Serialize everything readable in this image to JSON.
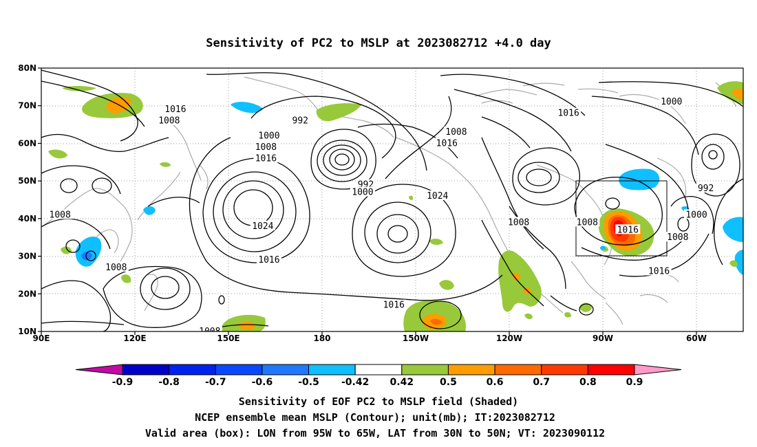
{
  "title": "Sensitivity of PC2 to MSLP at 2023082712 +4.0 day",
  "map": {
    "lon_ticks": [
      "90E",
      "120E",
      "150E",
      "180",
      "150W",
      "120W",
      "90W",
      "60W"
    ],
    "lat_ticks": [
      "80N",
      "70N",
      "60N",
      "50N",
      "40N",
      "30N",
      "20N",
      "10N"
    ],
    "lon_range": [
      "90E",
      "45W"
    ],
    "lat_range": [
      "10N",
      "80N"
    ],
    "grid": "dotted",
    "valid_box": {
      "lon_from": "95W",
      "lon_to": "65W",
      "lat_from": "30N",
      "lat_to": "50N"
    },
    "contour_labels": [
      {
        "text": "1016",
        "lon": "133E",
        "lat": "69N"
      },
      {
        "text": "1008",
        "lon": "131E",
        "lat": "66N"
      },
      {
        "text": "992",
        "lon": "187W",
        "lat": "66N"
      },
      {
        "text": "1000",
        "lon": "163E",
        "lat": "62N"
      },
      {
        "text": "1008",
        "lon": "162E",
        "lat": "59N"
      },
      {
        "text": "1016",
        "lon": "162E",
        "lat": "56N"
      },
      {
        "text": "992",
        "lon": "166W",
        "lat": "49N"
      },
      {
        "text": "1000",
        "lon": "167W",
        "lat": "47N"
      },
      {
        "text": "1008",
        "lon": "137W",
        "lat": "63N"
      },
      {
        "text": "1016",
        "lon": "140W",
        "lat": "60N"
      },
      {
        "text": "1024",
        "lon": "143W",
        "lat": "46N"
      },
      {
        "text": "1024",
        "lon": "161E",
        "lat": "38N"
      },
      {
        "text": "1016",
        "lon": "163E",
        "lat": "29N"
      },
      {
        "text": "1008",
        "lon": "96E",
        "lat": "41N"
      },
      {
        "text": "1008",
        "lon": "114E",
        "lat": "27N"
      },
      {
        "text": "1008",
        "lon": "144E",
        "lat": "10N"
      },
      {
        "text": "1016",
        "lon": "157W",
        "lat": "17N"
      },
      {
        "text": "1008",
        "lon": "117W",
        "lat": "39N"
      },
      {
        "text": "1008",
        "lon": "95W",
        "lat": "39N"
      },
      {
        "text": "1016",
        "lon": "101W",
        "lat": "68N"
      },
      {
        "text": "1016",
        "lon": "82W",
        "lat": "37N"
      },
      {
        "text": "1000",
        "lon": "68W",
        "lat": "71N"
      },
      {
        "text": "992",
        "lon": "57W",
        "lat": "48N"
      },
      {
        "text": "1000",
        "lon": "60W",
        "lat": "41N"
      },
      {
        "text": "1008",
        "lon": "66W",
        "lat": "35N"
      },
      {
        "text": "1016",
        "lon": "72W",
        "lat": "26N"
      }
    ]
  },
  "colorbar": {
    "labels": [
      "-0.9",
      "-0.8",
      "-0.7",
      "-0.6",
      "-0.5",
      "-0.42",
      "0.42",
      "0.5",
      "0.6",
      "0.7",
      "0.8",
      "0.9"
    ],
    "colors": [
      "#c10ba5",
      "#0000c8",
      "#0022ee",
      "#0a48ff",
      "#1f78ff",
      "#0fbfff",
      "#ffffff",
      "#97c93a",
      "#ff9c00",
      "#ff6a00",
      "#ff3a00",
      "#ff0000",
      "#ff9bc8"
    ]
  },
  "caption": [
    "Sensitivity of EOF PC2 to MSLP field (Shaded)",
    "NCEP ensemble mean MSLP (Contour); unit(mb); IT:2023082712",
    "Valid area (box): LON from 95W to 65W, LAT from 30N to 50N; VT: 2023090112"
  ]
}
